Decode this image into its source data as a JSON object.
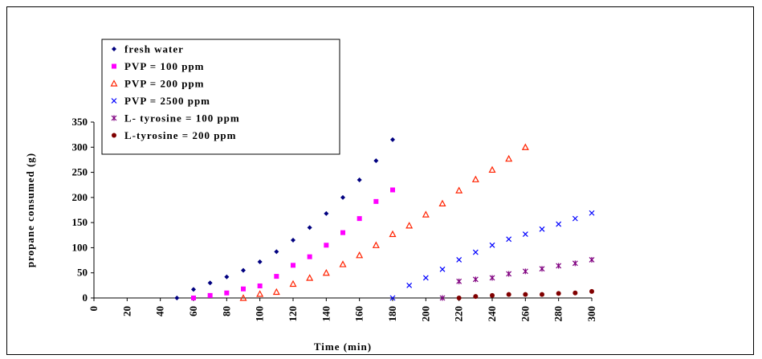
{
  "chart_data": {
    "type": "scatter",
    "title": "",
    "xlabel": "Time (min)",
    "ylabel": "propane consumed (g)",
    "xlim": [
      0,
      300
    ],
    "ylim": [
      0,
      350
    ],
    "x_ticks": [
      "0",
      "20",
      "40",
      "60",
      "80",
      "100",
      "120",
      "140",
      "160",
      "180",
      "200",
      "220",
      "240",
      "260",
      "280",
      "300"
    ],
    "y_ticks": [
      "0",
      "50",
      "100",
      "150",
      "200",
      "250",
      "300",
      "350"
    ],
    "grid": false,
    "legend_position": "top-left",
    "series": [
      {
        "name": "fresh water",
        "color": "#000080",
        "marker": "diamond",
        "x": [
          50,
          60,
          70,
          80,
          90,
          100,
          110,
          120,
          130,
          140,
          150,
          160,
          170,
          180
        ],
        "y": [
          0,
          17,
          30,
          42,
          55,
          72,
          92,
          115,
          140,
          168,
          200,
          235,
          273,
          315
        ]
      },
      {
        "name": "PVP = 100 ppm",
        "color": "#FF00FF",
        "marker": "square",
        "x": [
          60,
          70,
          80,
          90,
          100,
          110,
          120,
          130,
          140,
          150,
          160,
          170,
          180
        ],
        "y": [
          0,
          5,
          10,
          18,
          24,
          43,
          65,
          82,
          105,
          130,
          158,
          192,
          215
        ]
      },
      {
        "name": "PVP = 200 ppm",
        "color": "#FF2200",
        "marker": "triangle",
        "x": [
          90,
          100,
          110,
          120,
          130,
          140,
          150,
          160,
          170,
          180,
          190,
          200,
          210,
          220,
          230,
          240,
          250,
          260
        ],
        "y": [
          0,
          8,
          12,
          28,
          40,
          50,
          67,
          85,
          105,
          127,
          144,
          166,
          188,
          214,
          236,
          255,
          277,
          300
        ]
      },
      {
        "name": "PVP = 2500 ppm",
        "color": "#0000FF",
        "marker": "x",
        "x": [
          180,
          190,
          200,
          210,
          220,
          230,
          240,
          250,
          260,
          270,
          280,
          290,
          300
        ],
        "y": [
          0,
          25,
          40,
          57,
          76,
          91,
          105,
          117,
          127,
          137,
          147,
          158,
          169
        ]
      },
      {
        "name": "L- tyrosine = 100 ppm",
        "color": "#800080",
        "marker": "star",
        "x": [
          210,
          220,
          230,
          240,
          250,
          260,
          270,
          280,
          290,
          300
        ],
        "y": [
          0,
          33,
          37,
          40,
          48,
          53,
          58,
          64,
          69,
          76
        ]
      },
      {
        "name": "L-tyrosine = 200 ppm",
        "color": "#800000",
        "marker": "circle",
        "x": [
          220,
          230,
          240,
          250,
          260,
          270,
          280,
          290,
          300
        ],
        "y": [
          0,
          3,
          5,
          7,
          7,
          7,
          9,
          10,
          13
        ]
      }
    ]
  }
}
